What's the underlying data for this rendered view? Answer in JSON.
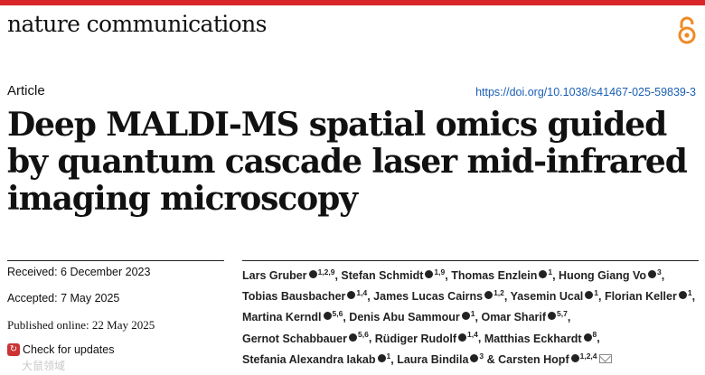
{
  "header": {
    "journal": "nature communications",
    "open_access_icon": "open-access-lock-icon",
    "accent_color": "#d9262b"
  },
  "article": {
    "type": "Article",
    "doi": "https://doi.org/10.1038/s41467-025-59839-3",
    "title": "Deep MALDI-MS spatial omics guided by quantum cascade laser mid-infrared imaging microscopy"
  },
  "dates": {
    "received": "Received: 6 December 2023",
    "accepted": "Accepted: 7 May 2025",
    "published": "Published online: 22 May 2025"
  },
  "check_updates": "Check for updates",
  "authors": [
    {
      "name": "Lars Gruber",
      "aff": "1,2,9",
      "sep": ","
    },
    {
      "name": "Stefan Schmidt",
      "aff": "1,9",
      "sep": ","
    },
    {
      "name": "Thomas Enzlein",
      "aff": "1",
      "sep": ","
    },
    {
      "name": "Huong Giang Vo",
      "aff": "3",
      "sep": ","
    },
    {
      "name": "Tobias Bausbacher",
      "aff": "1,4",
      "sep": ","
    },
    {
      "name": "James Lucas Cairns",
      "aff": "1,2",
      "sep": ","
    },
    {
      "name": "Yasemin Ucal",
      "aff": "1",
      "sep": ","
    },
    {
      "name": "Florian Keller",
      "aff": "1",
      "sep": ","
    },
    {
      "name": "Martina Kerndl",
      "aff": "5,6",
      "sep": ","
    },
    {
      "name": "Denis Abu Sammour",
      "aff": "1",
      "sep": ","
    },
    {
      "name": "Omar Sharif",
      "aff": "5,7",
      "sep": ","
    },
    {
      "name": "Gernot Schabbauer",
      "aff": "5,6",
      "sep": ","
    },
    {
      "name": "Rüdiger Rudolf",
      "aff": "1,4",
      "sep": ","
    },
    {
      "name": "Matthias Eckhardt",
      "aff": "8",
      "sep": ","
    },
    {
      "name": "Stefania Alexandra Iakab",
      "aff": "1",
      "sep": ","
    },
    {
      "name": "Laura Bindila",
      "aff": "3",
      "sep": " &"
    },
    {
      "name": "Carsten Hopf",
      "aff": "1,2,4",
      "sep": ""
    }
  ],
  "orcid_icon": "orcid-icon",
  "watermark": "大鼠领域"
}
